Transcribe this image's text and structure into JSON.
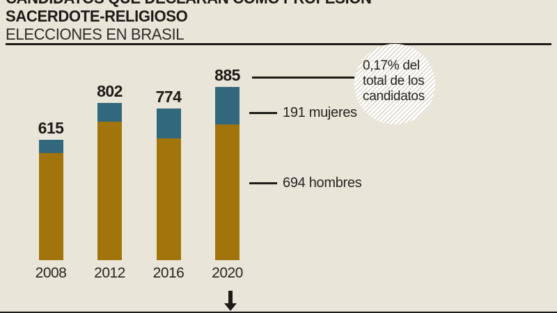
{
  "header": {
    "title_line1": "CANDIDATOS QUE DECLARAN COMO PROFESIÓN",
    "title_line2": "SACERDOTE-RELIGIOSO",
    "subtitle": "ELECCIONES EN BRASIL"
  },
  "chart_data": {
    "type": "bar",
    "stacked": true,
    "title": "CANDIDATOS QUE DECLARAN COMO PROFESIÓN SACERDOTE-RELIGIOSO",
    "subtitle": "ELECCIONES EN BRASIL",
    "categories": [
      "2008",
      "2012",
      "2016",
      "2020"
    ],
    "totals": [
      615,
      802,
      774,
      885
    ],
    "series": [
      {
        "name": "hombres",
        "color": "#a1750b",
        "values": [
          548,
          706,
          621,
          694
        ]
      },
      {
        "name": "mujeres",
        "color": "#31687d",
        "values": [
          67,
          96,
          153,
          191
        ]
      }
    ],
    "ylim": [
      0,
      900
    ],
    "grid": false,
    "legend_position": "none",
    "annotations": {
      "share_note": "0,17% del total de los candidatos",
      "share_note_lines": [
        "0,17% del",
        "total de los",
        "candidatos"
      ],
      "mujeres_label": "191 mujeres",
      "hombres_label": "694 hombres"
    }
  },
  "colors": {
    "background": "#e9e5d9",
    "gold": "#a1750b",
    "teal": "#31687d",
    "ink": "#1d1b16",
    "hatch": "#dcd7c8"
  }
}
